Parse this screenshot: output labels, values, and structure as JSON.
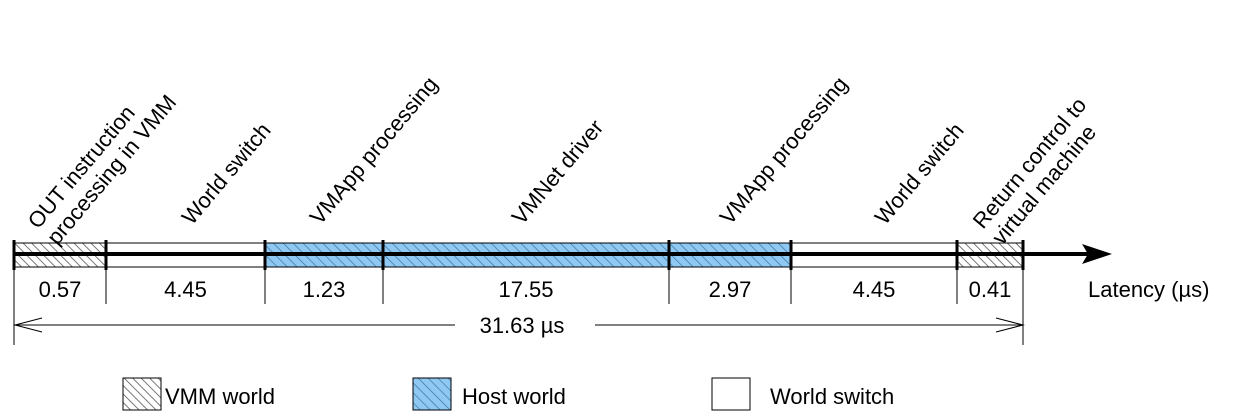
{
  "segments": [
    {
      "label": [
        "OUT instruction",
        "processing in VMM"
      ],
      "value": "0.57",
      "kind": "vmm"
    },
    {
      "label": [
        "World switch"
      ],
      "value": "4.45",
      "kind": "switch"
    },
    {
      "label": [
        "VMApp processing"
      ],
      "value": "1.23",
      "kind": "host"
    },
    {
      "label": [
        "VMNet driver"
      ],
      "value": "17.55",
      "kind": "host"
    },
    {
      "label": [
        "VMApp processing"
      ],
      "value": "2.97",
      "kind": "host"
    },
    {
      "label": [
        "World switch"
      ],
      "value": "4.45",
      "kind": "switch"
    },
    {
      "label": [
        "Return control to",
        "virtual machine"
      ],
      "value": "0.41",
      "kind": "vmm"
    }
  ],
  "axis_label": "Latency (µs)",
  "total_label": "31.63 µs",
  "legend": [
    {
      "kind": "vmm",
      "label": "VMM world"
    },
    {
      "kind": "host",
      "label": "Host world"
    },
    {
      "kind": "switch",
      "label": "World switch"
    }
  ],
  "colors": {
    "host": "#8fc8f2",
    "vmm_hatch": "#555555",
    "switch": "#ffffff"
  }
}
